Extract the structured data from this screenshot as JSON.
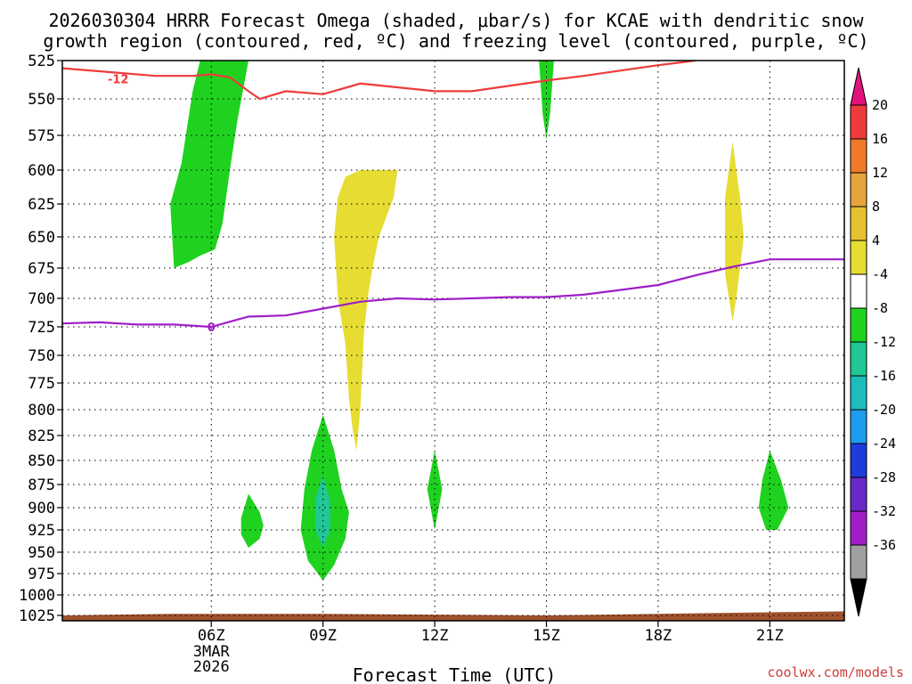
{
  "chart_data": {
    "type": "contour",
    "title_line1": "2026030304 HRRR Forecast Omega (shaded, μbar/s) for KCAE with dendritic snow",
    "title_line2": "growth region (contoured, red, ºC) and freezing level (contoured, purple, ºC)",
    "xlabel": "Forecast Time (UTC)",
    "credit": "coolwx.com/models",
    "x_range_hours": [
      2.0,
      23.0
    ],
    "x_ticks": [
      {
        "hour": 6,
        "label": "06Z",
        "sub1": "3MAR",
        "sub2": "2026"
      },
      {
        "hour": 9,
        "label": "09Z",
        "sub1": "",
        "sub2": ""
      },
      {
        "hour": 12,
        "label": "12Z",
        "sub1": "",
        "sub2": ""
      },
      {
        "hour": 15,
        "label": "15Z",
        "sub1": "",
        "sub2": ""
      },
      {
        "hour": 18,
        "label": "18Z",
        "sub1": "",
        "sub2": ""
      },
      {
        "hour": 21,
        "label": "21Z",
        "sub1": "",
        "sub2": ""
      }
    ],
    "y_ticks": [
      525,
      550,
      575,
      600,
      625,
      650,
      675,
      700,
      725,
      750,
      775,
      800,
      825,
      850,
      875,
      900,
      925,
      950,
      975,
      1000,
      1025
    ],
    "y_range_hpa": [
      525,
      1030
    ],
    "dgz_label": "-12",
    "dgz_line": [
      [
        2.0,
        530
      ],
      [
        4.5,
        535
      ],
      [
        5.5,
        535
      ],
      [
        6.0,
        534
      ],
      [
        6.5,
        536
      ],
      [
        7.0,
        545
      ],
      [
        7.3,
        550
      ],
      [
        8.0,
        545
      ],
      [
        9.0,
        547
      ],
      [
        10.0,
        540
      ],
      [
        12.0,
        545
      ],
      [
        13.0,
        545
      ],
      [
        15.0,
        538
      ],
      [
        16.0,
        535
      ],
      [
        18.0,
        528
      ],
      [
        19.0,
        525
      ]
    ],
    "freezing_label": "0",
    "freezing_line": [
      [
        2.0,
        722
      ],
      [
        3.0,
        721
      ],
      [
        4.0,
        723
      ],
      [
        5.0,
        723
      ],
      [
        6.0,
        725
      ],
      [
        7.0,
        716
      ],
      [
        8.0,
        715
      ],
      [
        9.0,
        709
      ],
      [
        10.0,
        703
      ],
      [
        11.0,
        700
      ],
      [
        12.0,
        701
      ],
      [
        13.0,
        700
      ],
      [
        14.0,
        699
      ],
      [
        15.0,
        699
      ],
      [
        16.0,
        697
      ],
      [
        17.0,
        693
      ],
      [
        18.0,
        689
      ],
      [
        19.0,
        681
      ],
      [
        20.0,
        674
      ],
      [
        21.0,
        668
      ],
      [
        22.0,
        668
      ],
      [
        23.0,
        668
      ]
    ],
    "ground_pressure_hpa": [
      [
        2.0,
        1025
      ],
      [
        5.0,
        1023
      ],
      [
        9.0,
        1023
      ],
      [
        12.0,
        1024
      ],
      [
        15.0,
        1025
      ],
      [
        18.0,
        1023
      ],
      [
        23.0,
        1020
      ]
    ],
    "omega_features": [
      {
        "name": "green-plume-upper-left",
        "value": -6,
        "color": "#1fd21f",
        "points": [
          [
            5.7,
            525
          ],
          [
            7.0,
            525
          ],
          [
            6.7,
            565
          ],
          [
            6.5,
            600
          ],
          [
            6.3,
            640
          ],
          [
            6.1,
            660
          ],
          [
            5.7,
            665
          ],
          [
            5.4,
            670
          ],
          [
            5.0,
            675
          ],
          [
            4.9,
            625
          ],
          [
            5.2,
            595
          ],
          [
            5.5,
            545
          ]
        ]
      },
      {
        "name": "green-sliver-15z",
        "value": -6,
        "color": "#1fd21f",
        "points": [
          [
            14.8,
            525
          ],
          [
            15.2,
            525
          ],
          [
            15.1,
            560
          ],
          [
            15.0,
            578
          ],
          [
            14.9,
            560
          ]
        ]
      },
      {
        "name": "yellow-plume-10z",
        "value": 6,
        "color": "#e6dc32",
        "points": [
          [
            10.0,
            600
          ],
          [
            11.0,
            600
          ],
          [
            10.9,
            620
          ],
          [
            10.5,
            650
          ],
          [
            10.3,
            680
          ],
          [
            10.2,
            700
          ],
          [
            10.1,
            730
          ],
          [
            10.0,
            800
          ],
          [
            9.9,
            840
          ],
          [
            9.8,
            820
          ],
          [
            9.7,
            790
          ],
          [
            9.6,
            740
          ],
          [
            9.4,
            700
          ],
          [
            9.3,
            650
          ],
          [
            9.4,
            620
          ],
          [
            9.6,
            605
          ]
        ]
      },
      {
        "name": "yellow-sliver-20z",
        "value": 6,
        "color": "#e6dc32",
        "points": [
          [
            20.0,
            580
          ],
          [
            20.2,
            620
          ],
          [
            20.3,
            650
          ],
          [
            20.1,
            700
          ],
          [
            20.0,
            720
          ],
          [
            19.8,
            680
          ],
          [
            19.8,
            620
          ]
        ]
      },
      {
        "name": "green-blob-07z",
        "value": -6,
        "color": "#1fd21f",
        "points": [
          [
            7.0,
            885
          ],
          [
            7.3,
            905
          ],
          [
            7.4,
            920
          ],
          [
            7.3,
            935
          ],
          [
            7.0,
            945
          ],
          [
            6.8,
            930
          ],
          [
            6.8,
            912
          ]
        ]
      },
      {
        "name": "green-blob-09z",
        "value": -6,
        "color": "#1fd21f",
        "points": [
          [
            9.0,
            805
          ],
          [
            9.3,
            840
          ],
          [
            9.5,
            880
          ],
          [
            9.7,
            905
          ],
          [
            9.6,
            935
          ],
          [
            9.3,
            965
          ],
          [
            9.0,
            983
          ],
          [
            8.6,
            960
          ],
          [
            8.4,
            925
          ],
          [
            8.5,
            880
          ],
          [
            8.7,
            840
          ]
        ]
      },
      {
        "name": "teal-core-09z",
        "value": -10,
        "color": "#1fc896",
        "points": [
          [
            9.0,
            865
          ],
          [
            9.2,
            895
          ],
          [
            9.2,
            925
          ],
          [
            9.0,
            945
          ],
          [
            8.8,
            925
          ],
          [
            8.8,
            890
          ]
        ]
      },
      {
        "name": "green-blob-12z",
        "value": -6,
        "color": "#1fd21f",
        "points": [
          [
            12.0,
            840
          ],
          [
            12.2,
            880
          ],
          [
            12.0,
            925
          ],
          [
            11.8,
            880
          ]
        ]
      },
      {
        "name": "green-blob-21z",
        "value": -6,
        "color": "#1fd21f",
        "points": [
          [
            21.0,
            840
          ],
          [
            21.3,
            870
          ],
          [
            21.5,
            900
          ],
          [
            21.2,
            925
          ],
          [
            20.9,
            925
          ],
          [
            20.7,
            900
          ],
          [
            20.8,
            870
          ]
        ]
      }
    ],
    "colorbar": {
      "label_values": [
        20,
        16,
        12,
        8,
        4,
        -4,
        -8,
        -12,
        -16,
        -20,
        -24,
        -28,
        -32,
        -36
      ],
      "bins": [
        {
          "color": "#ee3b3b"
        },
        {
          "color": "#f07a28"
        },
        {
          "color": "#e6a53a"
        },
        {
          "color": "#e6c232"
        },
        {
          "color": "#e6dc32"
        },
        {
          "color": "#ffffff"
        },
        {
          "color": "#1fd21f"
        },
        {
          "color": "#1fc896"
        },
        {
          "color": "#1fbcbc"
        },
        {
          "color": "#1e9cf0"
        },
        {
          "color": "#1e3cdc"
        },
        {
          "color": "#6a28c8"
        },
        {
          "color": "#a01ec8"
        },
        {
          "color": "#a0a0a0"
        }
      ],
      "top_triangle_color": "#e0147a",
      "bottom_triangle_color": "#000000"
    },
    "colors": {
      "dgz_line": "#ee3b3b",
      "freezing_line": "#a01ec8",
      "ground": "#a0522d",
      "grid": "#000000"
    }
  }
}
